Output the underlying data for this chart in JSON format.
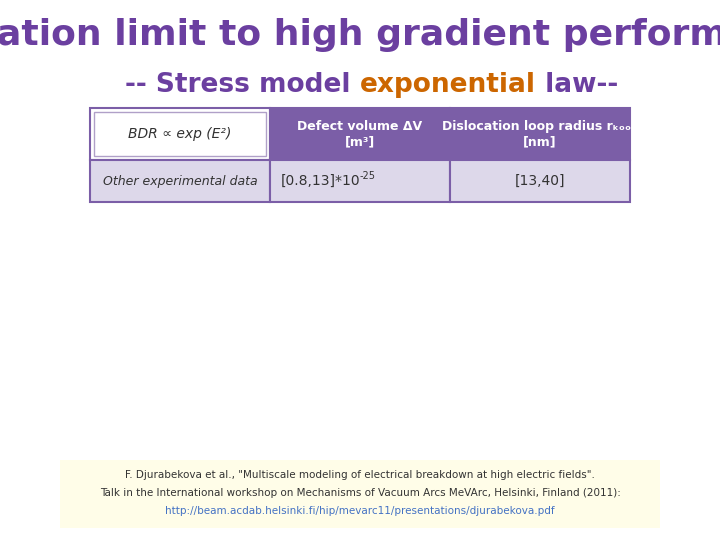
{
  "title_line1": "Operation limit to high gradient performance",
  "title_line2_prefix": "-- Stress model ",
  "title_line2_highlight": "exponential",
  "title_line2_suffix": " law--",
  "title_color": "#6b3fa0",
  "title_highlight_color": "#cc6600",
  "title_fontsize": 26,
  "subtitle_fontsize": 19,
  "table_header_bg": "#7b5ea7",
  "table_header_text": "#ffffff",
  "table_row_bg": "#ddd8ea",
  "table_header_cell0_bg": "#ffffff",
  "table_border_color": "#7b5ea7",
  "col1_header": "BDR ∝ exp (E²)",
  "col2_header": "Defect volume ΔV\n[m³]",
  "col3_header": "Dislocation loop radius rₖₒₒₚ\n[nm]",
  "row1_col1": "Other experimental data",
  "row1_col2_main": "[0.8,13]*10",
  "row1_col2_sup": "-25",
  "row1_col3": "[13,40]",
  "footnote_line1": "F. Djurabekova et al., \"Multiscale modeling of electrical breakdown at high electric fields\".",
  "footnote_line2": "Talk in the International workshop on Mechanisms of Vacuum Arcs MeVArc, Helsinki, Finland (2011):",
  "footnote_line3": "http://beam.acdab.helsinki.fi/hip/mevarc11/presentations/djurabekova.pdf",
  "footnote_bg": "#fffde8",
  "footnote_fontsize": 7.5,
  "bg_color": "#ffffff"
}
